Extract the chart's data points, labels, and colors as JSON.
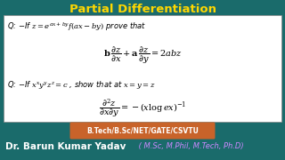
{
  "title": "Partial Differentiation",
  "title_color": "#FFD700",
  "bg_color": "#1a6b6b",
  "white_box_color": "#ffffff",
  "banner_bg": "#c8632a",
  "banner_text": "B.Tech/B.Sc/NET/GATE/CSVTU",
  "banner_text_color": "#ffffff",
  "footer_text": "Dr. Barun Kumar Yadav",
  "footer_subtext": " ( M.Sc, M.Phil, M.Tech, Ph.D)",
  "footer_color": "#ffffff",
  "footer_subcolor": "#cc88ff"
}
